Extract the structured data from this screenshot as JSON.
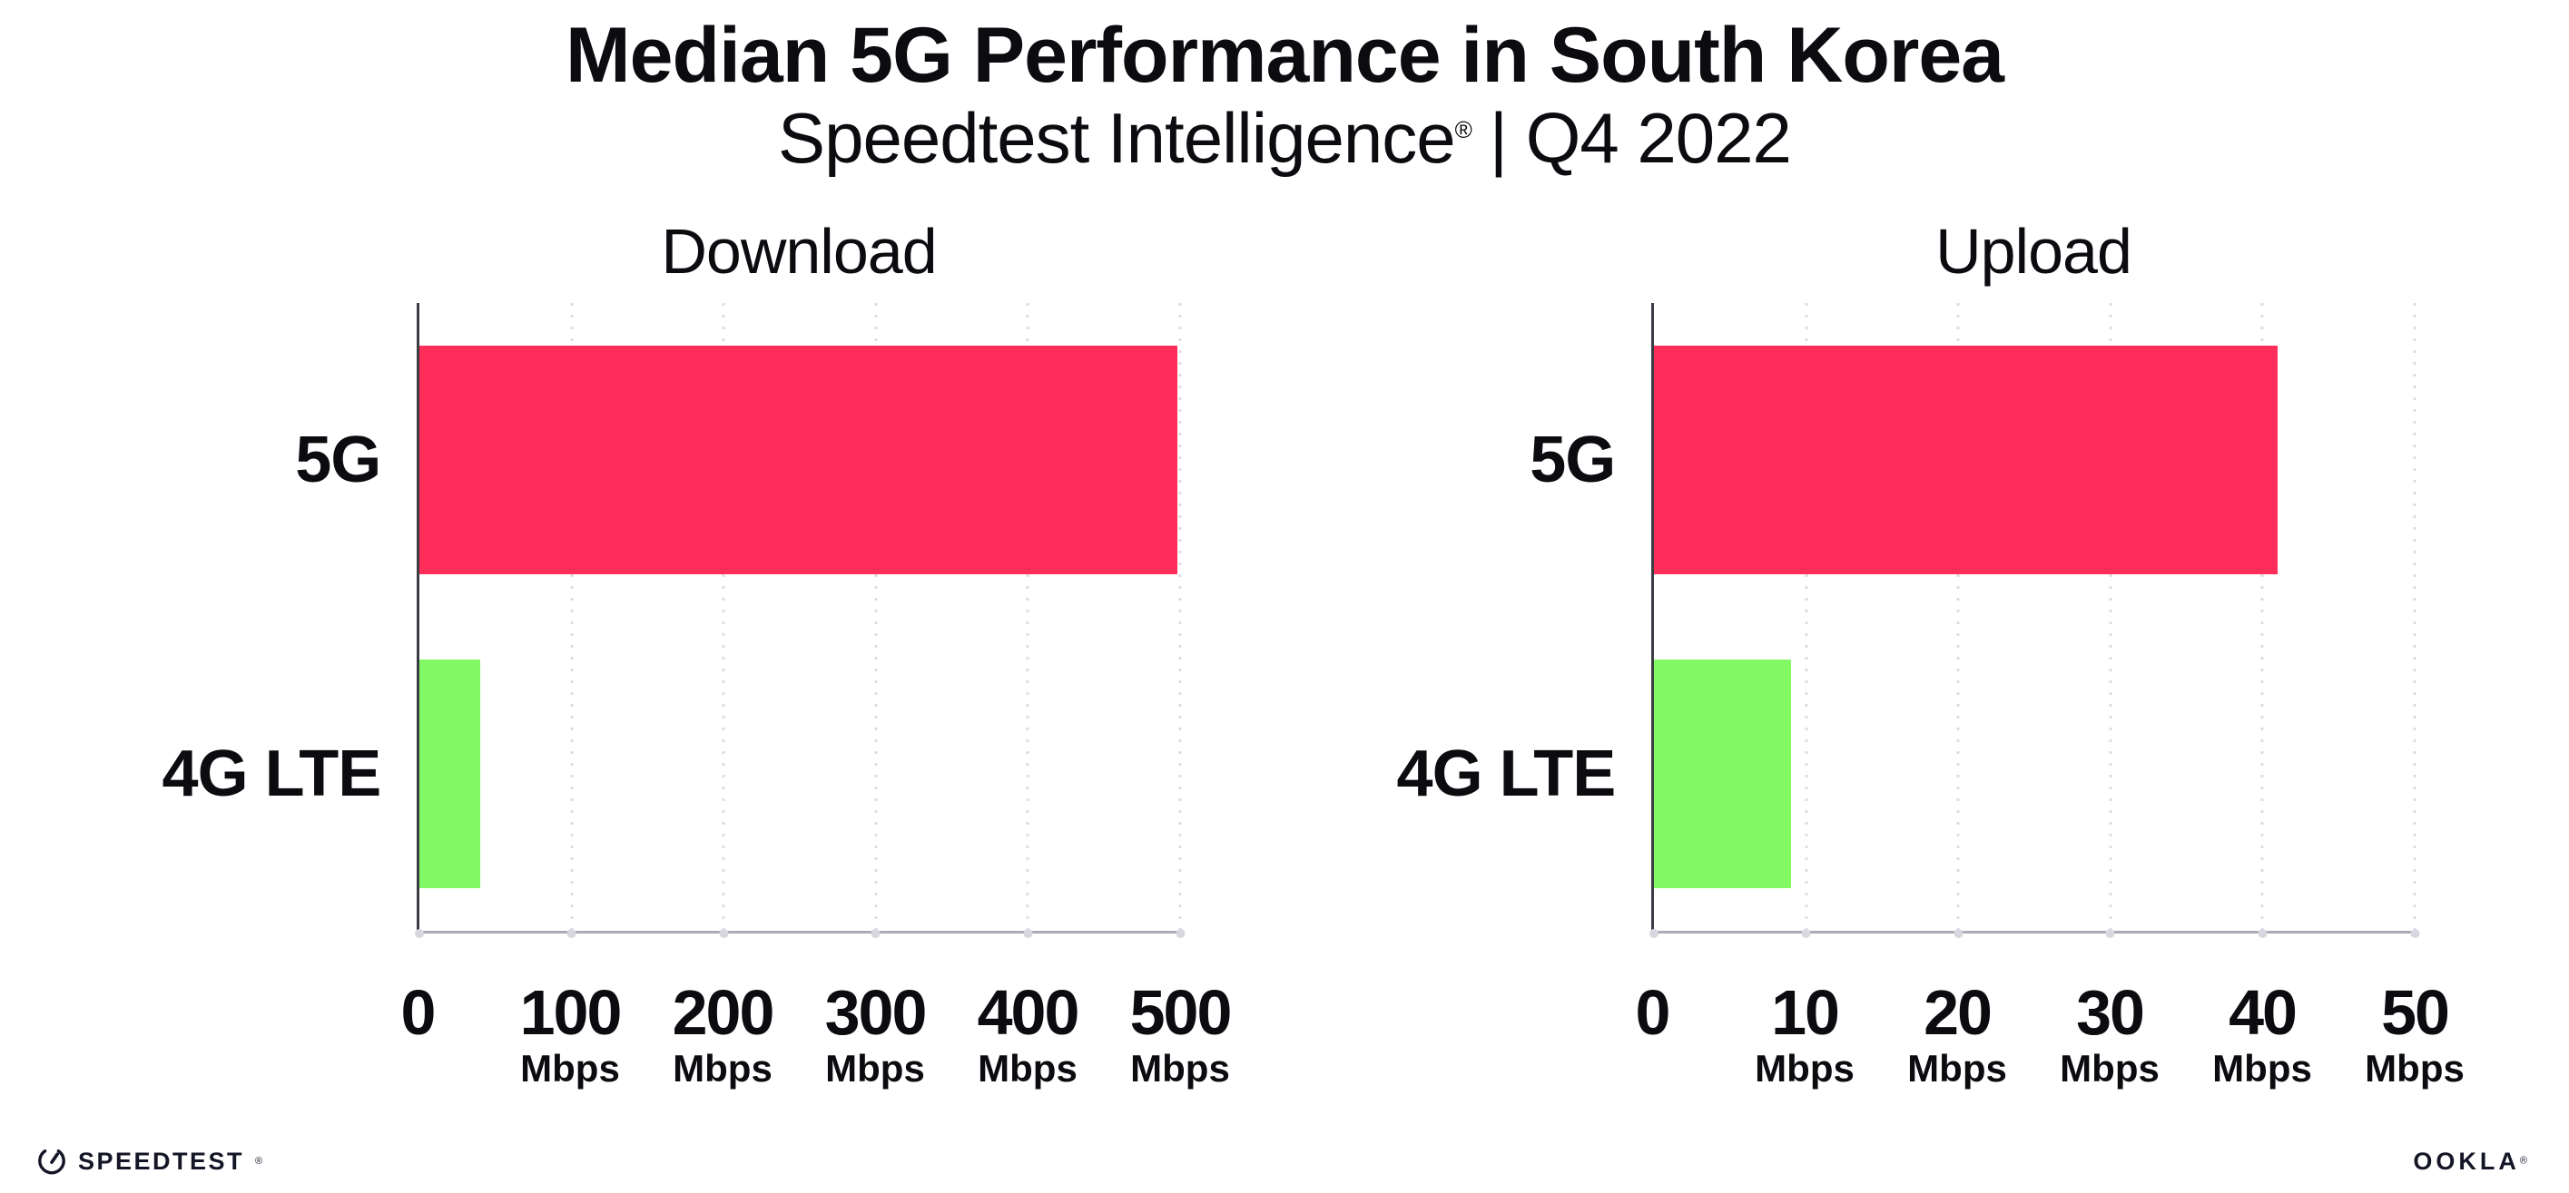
{
  "header": {
    "title": "Median 5G Performance in South Korea",
    "subtitle": {
      "brand": "Speedtest Intelligence",
      "registered_mark": "®",
      "period": "| Q4 2022"
    }
  },
  "chart_data": [
    {
      "type": "bar",
      "orientation": "horizontal",
      "title": "Download",
      "unit": "Mbps",
      "categories": [
        "5G",
        "4G LTE"
      ],
      "values": [
        498,
        40
      ],
      "colors": [
        "#FF2D5A",
        "#81FA63"
      ],
      "xlim": [
        0,
        500
      ],
      "xticks": [
        0,
        100,
        200,
        300,
        400,
        500
      ],
      "grid": "vertical-dotted",
      "legend": "none"
    },
    {
      "type": "bar",
      "orientation": "horizontal",
      "title": "Upload",
      "unit": "Mbps",
      "categories": [
        "5G",
        "4G LTE"
      ],
      "values": [
        41,
        9
      ],
      "colors": [
        "#FF2D5A",
        "#81FA63"
      ],
      "xlim": [
        0,
        50
      ],
      "xticks": [
        0,
        10,
        20,
        30,
        40,
        50
      ],
      "grid": "vertical-dotted",
      "legend": "none"
    }
  ],
  "footer": {
    "speedtest_logo": "SPEEDTEST",
    "speedtest_registered_mark": "®",
    "ookla_logo": "OOKLA",
    "ookla_registered_mark": "®"
  },
  "colors": {
    "bar_5g": "#FF2D5A",
    "bar_4g_lte": "#81FA63",
    "gridline": "#dcdce6",
    "baseline": "#ababb4",
    "y_axis": "#3c3c44",
    "text": "#0b0b10",
    "background": "#ffffff"
  }
}
